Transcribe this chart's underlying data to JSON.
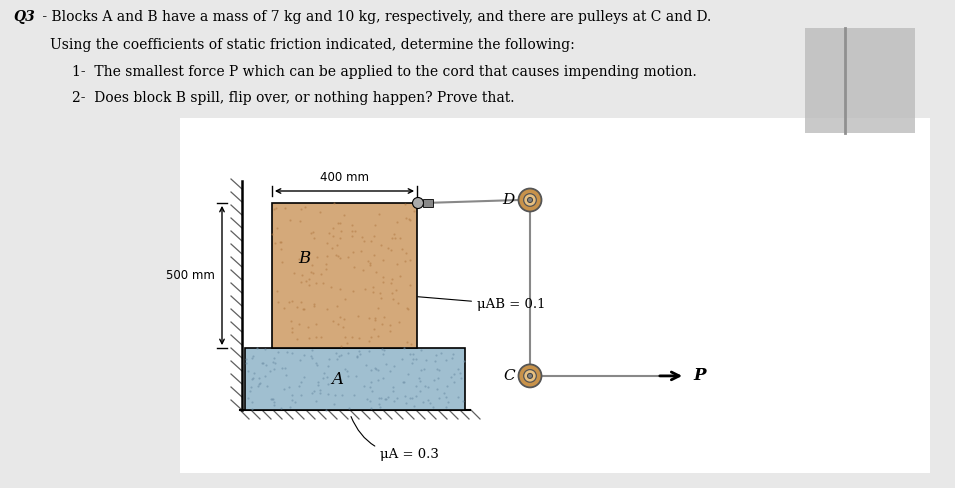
{
  "title_text_bold": "Q3",
  "title_rest": " - Blocks A and B have a mass of 7 kg and 10 kg, respectively, and there are pulleys at C and D.",
  "line2": "Using the coefficients of static friction indicated, determine the following:",
  "line3": "1-  The smallest force P which can be applied to the cord that causes impending motion.",
  "line4": "2-  Does block B spill, flip over, or nothing happen? Prove that.",
  "bg_color": "#e8e8e8",
  "block_A_color": "#a0bfd0",
  "block_B_color": "#d4a97a",
  "dim_400mm": "400 mm",
  "dim_500mm": "500 mm",
  "mu_AB_text": "μAB = 0.1",
  "mu_A_text": "μA = 0.3",
  "label_A": "A",
  "label_B": "B",
  "label_C": "C",
  "label_D": "D",
  "label_P": "P",
  "pulley_outer_color": "#c8924a",
  "pulley_inner_color": "#e8c080",
  "rope_color": "#707070",
  "wall_hatch_color": "#606060",
  "ground_hatch_color": "#606060"
}
